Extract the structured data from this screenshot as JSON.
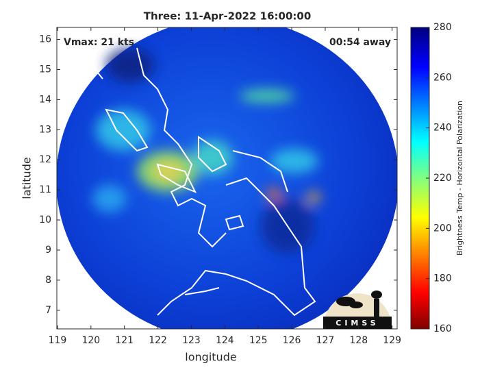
{
  "chart_data": {
    "type": "map",
    "title": "Three: 11-Apr-2022 16:00:00",
    "annotations": [
      "Vmax: 21 kts",
      "00:54 away"
    ],
    "xlabel": "longitude",
    "ylabel": "latitude",
    "xlim": [
      118.98,
      129.15
    ],
    "ylim": [
      6.38,
      16.4
    ],
    "xticks": [
      119,
      120,
      121,
      122,
      123,
      124,
      125,
      126,
      127,
      128,
      129
    ],
    "yticks": [
      7,
      8,
      9,
      10,
      11,
      12,
      13,
      14,
      15,
      16
    ],
    "colorbar": {
      "label": "Brightness Temp - Horizontal Polarization",
      "lim": [
        160,
        280
      ],
      "ticks": [
        160,
        180,
        200,
        220,
        240,
        260,
        280
      ]
    },
    "logo": "CIMSS"
  }
}
